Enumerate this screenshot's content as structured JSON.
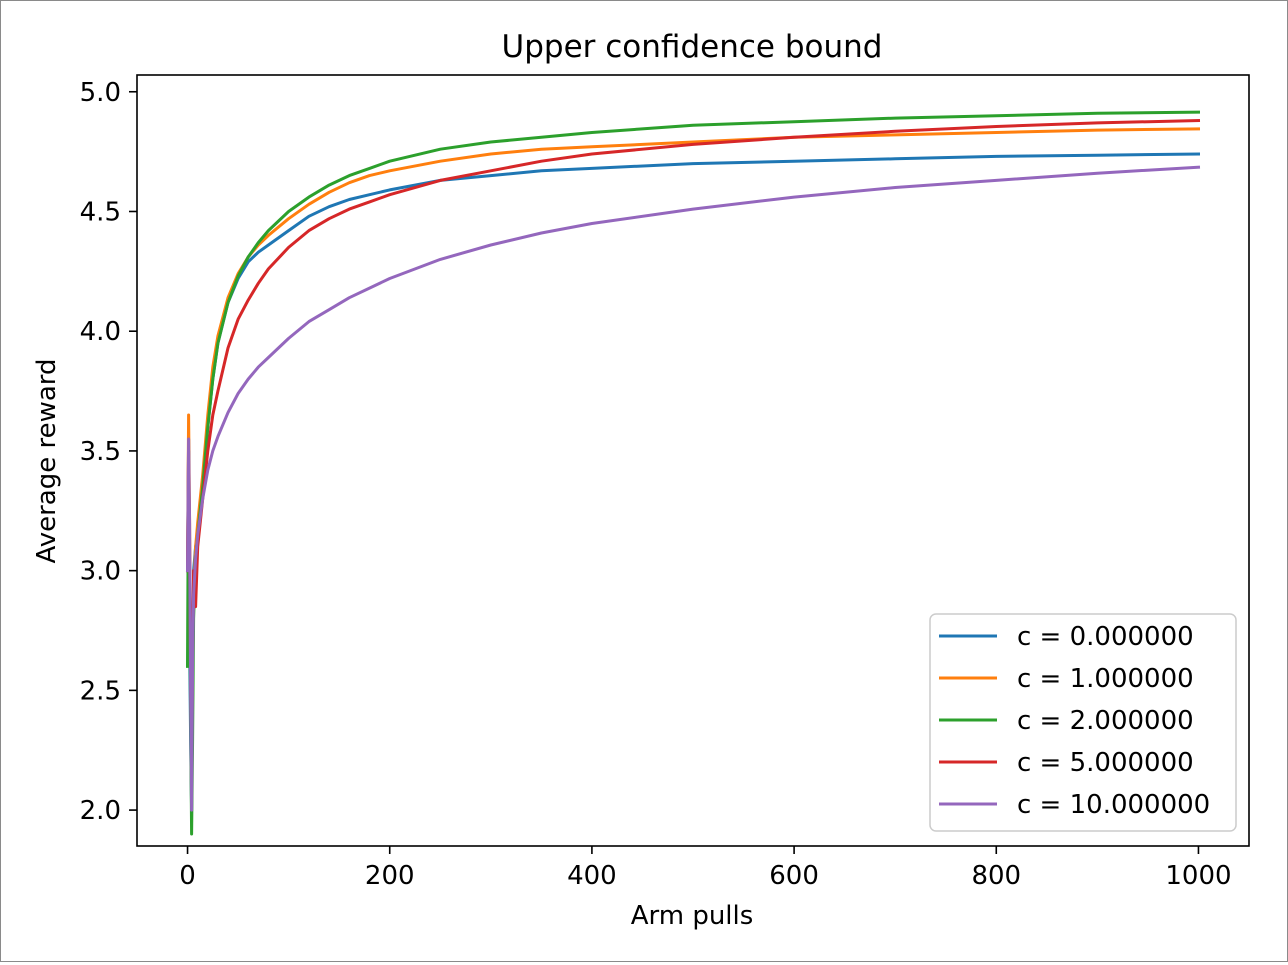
{
  "chart_data": {
    "type": "line",
    "title": "Upper confidence bound",
    "xlabel": "Arm pulls",
    "ylabel": "Average reward",
    "xlim": [
      -50,
      1050
    ],
    "ylim": [
      1.85,
      5.07
    ],
    "xticks": [
      0,
      200,
      400,
      600,
      800,
      1000
    ],
    "xtick_labels": [
      "0",
      "200",
      "400",
      "600",
      "800",
      "1000"
    ],
    "yticks": [
      2.0,
      2.5,
      3.0,
      3.5,
      4.0,
      4.5,
      5.0
    ],
    "ytick_labels": [
      "2.0",
      "2.5",
      "3.0",
      "3.5",
      "4.0",
      "4.5",
      "5.0"
    ],
    "grid": false,
    "legend": "lower-right",
    "series": [
      {
        "name": "c = 0.000000",
        "color": "#1f77b4",
        "x": [
          0,
          1,
          2,
          3,
          4,
          5,
          6,
          8,
          10,
          15,
          20,
          25,
          30,
          40,
          50,
          60,
          70,
          80,
          100,
          120,
          140,
          160,
          180,
          200,
          250,
          300,
          350,
          400,
          500,
          600,
          700,
          800,
          900,
          1000
        ],
        "y": [
          3.0,
          3.55,
          2.7,
          2.3,
          2.0,
          2.5,
          3.0,
          3.1,
          3.15,
          3.35,
          3.6,
          3.8,
          3.95,
          4.12,
          4.22,
          4.29,
          4.33,
          4.36,
          4.42,
          4.48,
          4.52,
          4.55,
          4.57,
          4.59,
          4.63,
          4.65,
          4.67,
          4.68,
          4.7,
          4.71,
          4.72,
          4.73,
          4.735,
          4.74
        ]
      },
      {
        "name": "c = 1.000000",
        "color": "#ff7f0e",
        "x": [
          0,
          1,
          2,
          3,
          4,
          5,
          6,
          8,
          10,
          15,
          20,
          25,
          30,
          40,
          50,
          60,
          70,
          80,
          100,
          120,
          140,
          160,
          180,
          200,
          250,
          300,
          350,
          400,
          500,
          600,
          700,
          800,
          900,
          1000
        ],
        "y": [
          3.0,
          3.65,
          3.2,
          2.6,
          2.05,
          2.5,
          2.9,
          3.1,
          3.2,
          3.4,
          3.65,
          3.85,
          3.98,
          4.14,
          4.24,
          4.31,
          4.36,
          4.4,
          4.47,
          4.53,
          4.58,
          4.62,
          4.65,
          4.67,
          4.71,
          4.74,
          4.76,
          4.77,
          4.79,
          4.81,
          4.82,
          4.83,
          4.84,
          4.845
        ]
      },
      {
        "name": "c = 2.000000",
        "color": "#2ca02c",
        "x": [
          0,
          1,
          2,
          3,
          4,
          5,
          6,
          8,
          10,
          15,
          20,
          25,
          30,
          40,
          50,
          60,
          70,
          80,
          100,
          120,
          140,
          160,
          180,
          200,
          250,
          300,
          350,
          400,
          500,
          600,
          700,
          800,
          900,
          1000
        ],
        "y": [
          2.6,
          3.5,
          3.0,
          2.4,
          1.9,
          2.3,
          2.8,
          3.05,
          3.15,
          3.35,
          3.6,
          3.8,
          3.95,
          4.12,
          4.23,
          4.31,
          4.37,
          4.42,
          4.5,
          4.56,
          4.61,
          4.65,
          4.68,
          4.71,
          4.76,
          4.79,
          4.81,
          4.83,
          4.86,
          4.875,
          4.89,
          4.9,
          4.91,
          4.915
        ]
      },
      {
        "name": "c = 5.000000",
        "color": "#d62728",
        "x": [
          0,
          1,
          2,
          3,
          4,
          5,
          6,
          8,
          10,
          15,
          20,
          25,
          30,
          40,
          50,
          60,
          70,
          80,
          100,
          120,
          140,
          160,
          180,
          200,
          250,
          300,
          350,
          400,
          500,
          600,
          700,
          800,
          900,
          1000
        ],
        "y": [
          3.0,
          3.5,
          3.1,
          2.6,
          2.2,
          2.7,
          3.0,
          2.85,
          3.1,
          3.3,
          3.5,
          3.65,
          3.75,
          3.93,
          4.05,
          4.13,
          4.2,
          4.26,
          4.35,
          4.42,
          4.47,
          4.51,
          4.54,
          4.57,
          4.63,
          4.67,
          4.71,
          4.74,
          4.78,
          4.81,
          4.835,
          4.855,
          4.87,
          4.88
        ]
      },
      {
        "name": "c = 10.000000",
        "color": "#9467bd",
        "x": [
          0,
          1,
          2,
          3,
          4,
          5,
          6,
          8,
          10,
          15,
          20,
          25,
          30,
          40,
          50,
          60,
          70,
          80,
          100,
          120,
          140,
          160,
          180,
          200,
          250,
          300,
          350,
          400,
          500,
          600,
          700,
          800,
          900,
          1000
        ],
        "y": [
          3.0,
          3.55,
          3.2,
          2.5,
          2.0,
          2.6,
          2.9,
          3.05,
          3.15,
          3.3,
          3.42,
          3.5,
          3.56,
          3.66,
          3.74,
          3.8,
          3.85,
          3.89,
          3.97,
          4.04,
          4.09,
          4.14,
          4.18,
          4.22,
          4.3,
          4.36,
          4.41,
          4.45,
          4.51,
          4.56,
          4.6,
          4.63,
          4.66,
          4.685
        ]
      }
    ]
  }
}
